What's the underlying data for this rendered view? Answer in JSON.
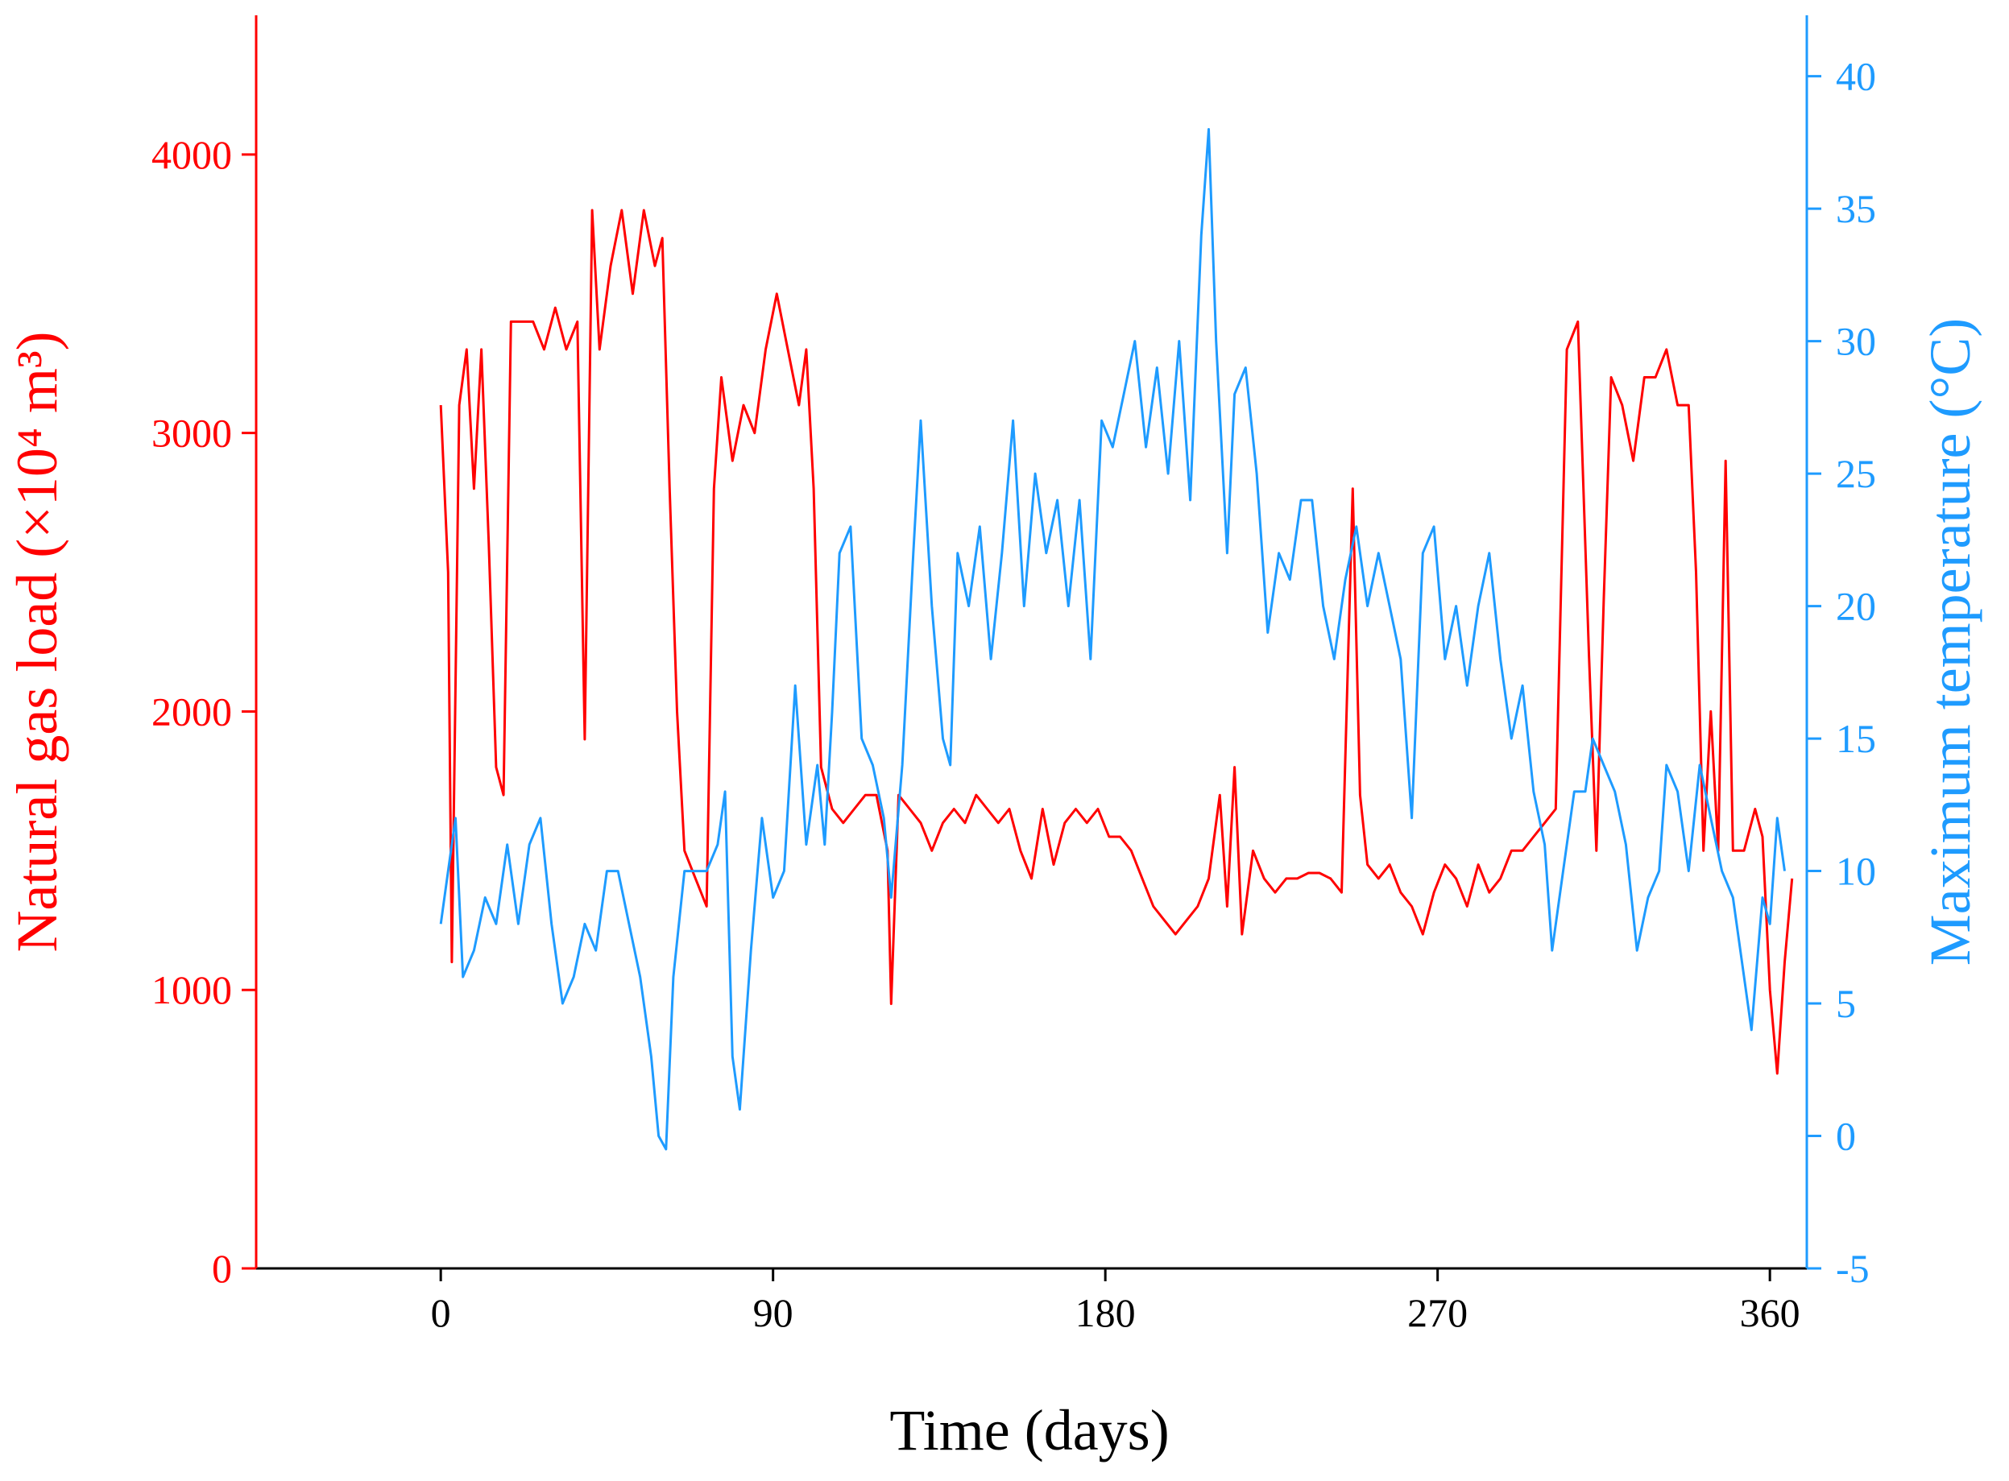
{
  "chart_data": {
    "type": "line",
    "xlabel": "Time (days)",
    "ylabel": "Natural gas load (×10⁴ m³)",
    "y2label": "Maximum temperature (°C)",
    "xlim": [
      -50,
      370
    ],
    "xticks": [
      0,
      90,
      180,
      270,
      360
    ],
    "ylim": [
      0,
      4500
    ],
    "yticks": [
      0,
      1000,
      2000,
      3000,
      4000
    ],
    "y2lim": [
      -5,
      42.3
    ],
    "y2ticks": [
      -5,
      0,
      5,
      10,
      15,
      20,
      25,
      30,
      35,
      40
    ],
    "series": [
      {
        "name": "Natural gas load",
        "color": "#ff0000",
        "axis": "y",
        "x": [
          0,
          2,
          3,
          5,
          7,
          9,
          11,
          13,
          15,
          17,
          19,
          22,
          25,
          28,
          31,
          34,
          37,
          39,
          41,
          43,
          46,
          49,
          52,
          55,
          58,
          60,
          62,
          64,
          66,
          69,
          72,
          74,
          76,
          79,
          82,
          85,
          88,
          91,
          94,
          97,
          99,
          101,
          103,
          106,
          109,
          112,
          115,
          118,
          121,
          122,
          124,
          127,
          130,
          133,
          136,
          139,
          142,
          145,
          148,
          151,
          154,
          157,
          160,
          163,
          166,
          169,
          172,
          175,
          178,
          181,
          184,
          187,
          190,
          193,
          196,
          199,
          202,
          205,
          208,
          211,
          213,
          215,
          217,
          220,
          223,
          226,
          229,
          232,
          235,
          238,
          241,
          244,
          247,
          249,
          251,
          254,
          257,
          260,
          263,
          266,
          269,
          272,
          275,
          278,
          281,
          284,
          287,
          290,
          293,
          296,
          299,
          302,
          305,
          308,
          311,
          313,
          315,
          317,
          320,
          323,
          326,
          329,
          332,
          335,
          338,
          340,
          342,
          344,
          346,
          348,
          350,
          353,
          356,
          358,
          360,
          362,
          364,
          366
        ],
        "values": [
          3100,
          2500,
          1100,
          3100,
          3300,
          2800,
          3300,
          2600,
          1800,
          1700,
          3400,
          3400,
          3400,
          3300,
          3450,
          3300,
          3400,
          1900,
          3800,
          3300,
          3600,
          3800,
          3500,
          3800,
          3600,
          3700,
          2800,
          2000,
          1500,
          1400,
          1300,
          2800,
          3200,
          2900,
          3100,
          3000,
          3300,
          3500,
          3300,
          3100,
          3300,
          2800,
          1800,
          1650,
          1600,
          1650,
          1700,
          1700,
          1500,
          950,
          1700,
          1650,
          1600,
          1500,
          1600,
          1650,
          1600,
          1700,
          1650,
          1600,
          1650,
          1500,
          1400,
          1650,
          1450,
          1600,
          1650,
          1600,
          1650,
          1550,
          1550,
          1500,
          1400,
          1300,
          1250,
          1200,
          1250,
          1300,
          1400,
          1700,
          1300,
          1800,
          1200,
          1500,
          1400,
          1350,
          1400,
          1400,
          1420,
          1420,
          1400,
          1350,
          2800,
          1700,
          1450,
          1400,
          1450,
          1350,
          1300,
          1200,
          1350,
          1450,
          1400,
          1300,
          1450,
          1350,
          1400,
          1500,
          1500,
          1550,
          1600,
          1650,
          3300,
          3400,
          2200,
          1500,
          2400,
          3200,
          3100,
          2900,
          3200,
          3200,
          3300,
          3100,
          3100,
          2500,
          1500,
          2000,
          1500,
          2900,
          1500,
          1500,
          1650,
          1550,
          1000,
          700,
          1100,
          1400
        ]
      },
      {
        "name": "Maximum temperature",
        "color": "#1e9bff",
        "axis": "y2",
        "x": [
          0,
          2,
          4,
          6,
          9,
          12,
          15,
          18,
          21,
          24,
          27,
          30,
          33,
          36,
          39,
          42,
          45,
          48,
          51,
          54,
          57,
          59,
          61,
          63,
          66,
          69,
          72,
          75,
          77,
          79,
          81,
          84,
          87,
          90,
          93,
          96,
          99,
          102,
          104,
          106,
          108,
          111,
          114,
          117,
          120,
          122,
          125,
          128,
          130,
          133,
          136,
          138,
          140,
          143,
          146,
          149,
          152,
          155,
          158,
          161,
          164,
          167,
          170,
          173,
          176,
          179,
          182,
          185,
          188,
          191,
          194,
          197,
          200,
          203,
          206,
          208,
          210,
          213,
          215,
          218,
          221,
          224,
          227,
          230,
          233,
          236,
          239,
          242,
          245,
          248,
          251,
          254,
          257,
          260,
          263,
          266,
          269,
          272,
          275,
          278,
          281,
          284,
          287,
          290,
          293,
          296,
          299,
          301,
          304,
          307,
          310,
          312,
          315,
          318,
          321,
          324,
          327,
          330,
          332,
          335,
          338,
          341,
          344,
          347,
          350,
          353,
          355,
          358,
          360,
          362,
          364
        ],
        "values": [
          8,
          10,
          12,
          6,
          7,
          9,
          8,
          11,
          8,
          11,
          12,
          8,
          5,
          6,
          8,
          7,
          10,
          10,
          8,
          6,
          3,
          0,
          -0.5,
          6,
          10,
          10,
          10,
          11,
          13,
          3,
          1,
          7,
          12,
          9,
          10,
          17,
          11,
          14,
          11,
          16,
          22,
          23,
          15,
          14,
          12,
          9,
          14,
          22,
          27,
          20,
          15,
          14,
          22,
          20,
          23,
          18,
          22,
          27,
          20,
          25,
          22,
          24,
          20,
          24,
          18,
          27,
          26,
          28,
          30,
          26,
          29,
          25,
          30,
          24,
          34,
          38,
          30,
          22,
          28,
          29,
          25,
          19,
          22,
          21,
          24,
          24,
          20,
          18,
          21,
          23,
          20,
          22,
          20,
          18,
          12,
          22,
          23,
          18,
          20,
          17,
          20,
          22,
          18,
          15,
          17,
          13,
          11,
          7,
          10,
          13,
          13,
          15,
          14,
          13,
          11,
          7,
          9,
          10,
          14,
          13,
          10,
          14,
          12,
          10,
          9,
          6,
          4,
          9,
          8,
          12,
          10
        ]
      }
    ]
  }
}
